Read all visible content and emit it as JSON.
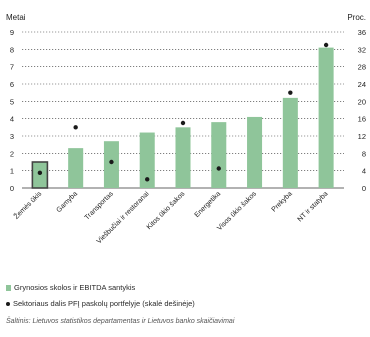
{
  "chart_data": {
    "type": "bar",
    "left_axis_label": "Metai",
    "right_axis_label": "Proc.",
    "left_ticks": [
      "0",
      "1",
      "2",
      "3",
      "4",
      "5",
      "6",
      "7",
      "8",
      "9"
    ],
    "right_ticks": [
      "0",
      "4",
      "8",
      "12",
      "16",
      "20",
      "24",
      "28",
      "32",
      "36"
    ],
    "ylim_left": [
      0,
      9
    ],
    "ylim_right": [
      0,
      36
    ],
    "categories": [
      "Žemės ūkis",
      "Gamyba",
      "Transportas",
      "Viešbučiai ir restoranai",
      "Kitos ūkio šakos",
      "Energetika",
      "Visos ūkio šakos",
      "Prekyba",
      "NT ir statyba"
    ],
    "series": [
      {
        "name": "Grynosios skolos ir EBITDA santykis",
        "axis": "left",
        "kind": "bar",
        "values": [
          1.5,
          2.3,
          2.7,
          3.2,
          3.5,
          3.8,
          4.1,
          5.2,
          8.1
        ]
      },
      {
        "name": "Sektoriaus dalis PFĮ paskolų portfelyje (skalė dešinėje)",
        "axis": "right",
        "kind": "scatter",
        "values": [
          3.5,
          14,
          6,
          2,
          15,
          4.5,
          null,
          22,
          33
        ]
      }
    ],
    "grid": true,
    "legend": "bottom"
  },
  "source_text": "Šaltinis: Lietuvos statistikos departamentas ir Lietuvos banko skaičiavimai",
  "colors": {
    "bar": "#8fc59a",
    "bar_highlight": "#444444",
    "dot": "#1a1a1a",
    "grid": "#333333"
  }
}
